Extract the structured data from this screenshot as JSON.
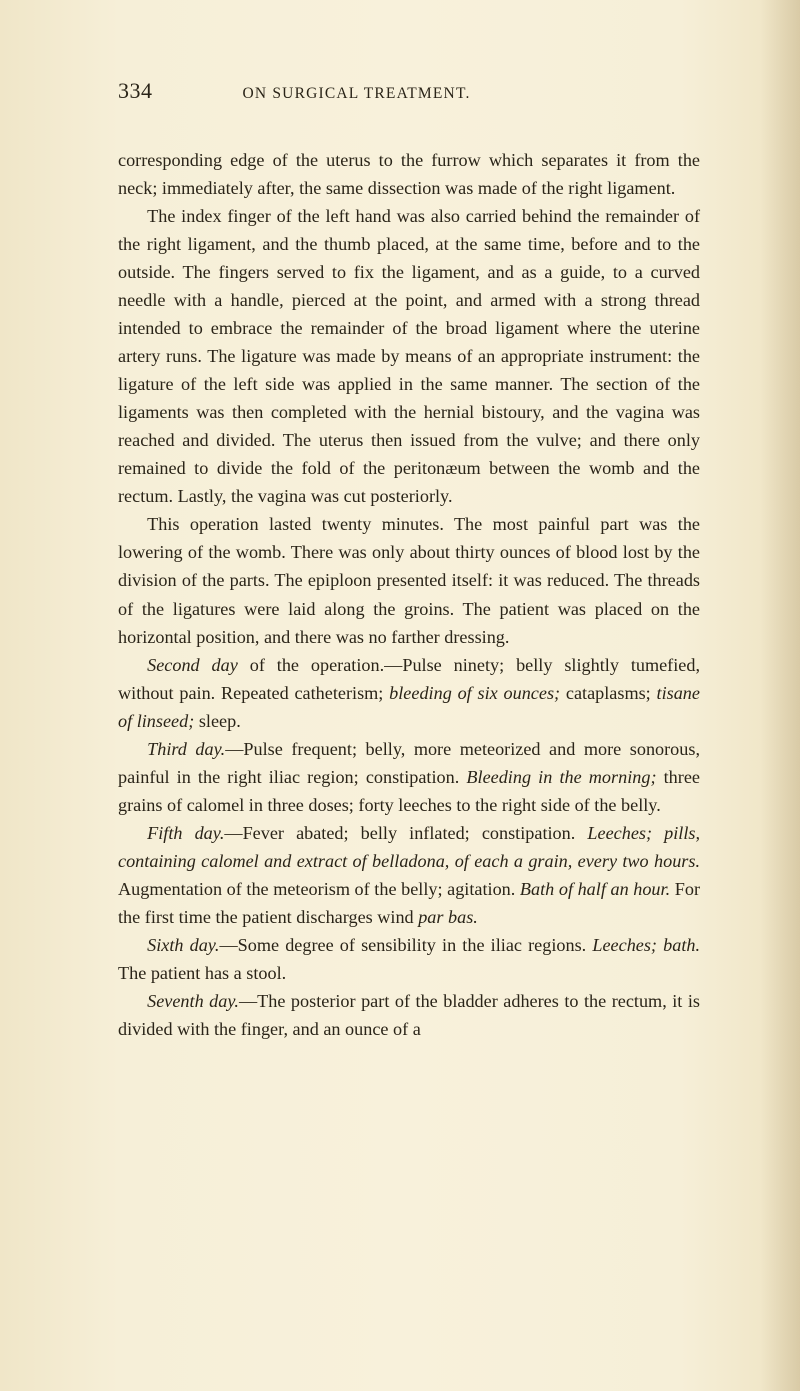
{
  "page": {
    "number": "334",
    "runningTitle": "ON SURGICAL TREATMENT."
  },
  "paragraphs": {
    "p1a": "corresponding edge of the uterus to the furrow which separates it from the neck; immediately after, the same dissection was made of the right ligament.",
    "p2a": "The index finger of the left hand was also carried behind the remainder of the right ligament, and the thumb placed, at the same time, before and to the outside. The fingers served to fix the ligament, and as a guide, to a curved needle with a handle, pierced at the point, and armed with a strong thread intended to embrace the remainder of the broad ligament where the uterine artery runs. The ligature was made by means of an appropriate instrument: the ligature of the left side was applied in the same manner. The section of the ligaments was then completed with the hernial bistoury, and the vagina was reached and divided. The uterus then issued from the vulve; and there only remained to divide the fold of the peritonæum between the womb and the rectum. Lastly, the vagina was cut posteriorly.",
    "p3a": "This operation lasted twenty minutes. The most painful part was the lowering of the womb. There was only about thirty ounces of blood lost by the division of the parts. The epiploon presented itself: it was reduced. The threads of the ligatures were laid along the groins. The patient was placed on the horizontal position, and there was no farther dressing.",
    "p4_1i": "Second day",
    "p4_2": " of the operation.—Pulse ninety; belly slightly tumefied, without pain. Repeated catheterism; ",
    "p4_3i": "bleeding of six ounces;",
    "p4_4": " cataplasms; ",
    "p4_5i": "tisane of linseed;",
    "p4_6": " sleep.",
    "p5_1i": "Third day.",
    "p5_2": "—Pulse frequent; belly, more meteorized and more sonorous, painful in the right iliac region; constipation. ",
    "p5_3i": "Bleeding in the morning;",
    "p5_4": " three grains of calomel in three doses; forty leeches to the right side of the belly.",
    "p6_1i": "Fifth day.",
    "p6_2": "—Fever abated; belly inflated; constipation. ",
    "p6_3i": "Leeches; pills, containing calomel and extract of belladona, of each a grain, every two hours.",
    "p6_4": " Augmentation of the meteorism of the belly; agitation. ",
    "p6_5i": "Bath of half an hour.",
    "p6_6": " For the first time the patient discharges wind ",
    "p6_7i": "par bas.",
    "p7_1i": "Sixth day.",
    "p7_2": "—Some degree of sensibility in the iliac regions. ",
    "p7_3i": "Leeches; bath.",
    "p7_4": " The patient has a stool.",
    "p8_1i": "Seventh day.",
    "p8_2": "—The posterior part of the bladder adheres to the rectum, it is divided with the finger, and an ounce of a"
  }
}
